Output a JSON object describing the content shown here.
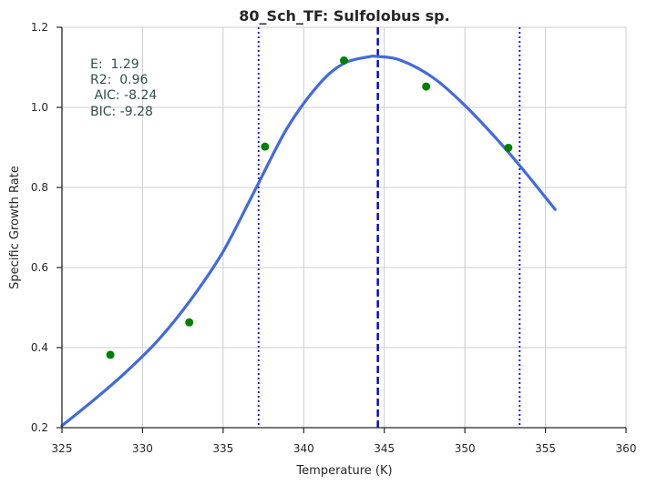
{
  "chart_data": {
    "type": "scatter",
    "title": "80_Sch_TF: Sulfolobus sp.",
    "xlabel": "Temperature (K)",
    "ylabel": "Specific Growth Rate",
    "xlim": [
      325,
      360
    ],
    "ylim": [
      0.2,
      1.2
    ],
    "xticks": [
      325,
      330,
      335,
      340,
      345,
      350,
      355,
      360
    ],
    "yticks": [
      0.2,
      0.4,
      0.6,
      0.8,
      1.0,
      1.2
    ],
    "xtick_labels": [
      "325",
      "330",
      "335",
      "340",
      "345",
      "350",
      "355",
      "360"
    ],
    "ytick_labels": [
      "0.2",
      "0.4",
      "0.6",
      "0.8",
      "1.0",
      "1.2"
    ],
    "grid": true,
    "points": {
      "color": "#008000",
      "x": [
        328.0,
        332.9,
        337.6,
        342.5,
        347.6,
        352.7
      ],
      "y": [
        0.382,
        0.463,
        0.902,
        1.117,
        1.052,
        0.899
      ]
    },
    "fit_curve": {
      "color": "#4169e1",
      "x": [
        325.0,
        327.0,
        329.0,
        331.0,
        333.0,
        335.0,
        337.0,
        339.0,
        341.0,
        342.5,
        344.0,
        344.6,
        346.0,
        348.0,
        350.0,
        352.0,
        353.5,
        355.6
      ],
      "y": [
        0.205,
        0.27,
        0.34,
        0.42,
        0.52,
        0.64,
        0.795,
        0.95,
        1.06,
        1.11,
        1.126,
        1.127,
        1.118,
        1.075,
        1.005,
        0.92,
        0.85,
        0.745
      ]
    },
    "vertical_lines": [
      {
        "x": 344.6,
        "style": "dashed",
        "color": "#0000cd"
      },
      {
        "x": 337.2,
        "style": "dotted",
        "color": "#0000ff"
      },
      {
        "x": 353.4,
        "style": "dotted",
        "color": "#0000ff"
      }
    ],
    "annotations": [
      "E:  1.29",
      "R2:  0.96",
      " AIC: -8.24",
      "BIC: -9.28"
    ]
  }
}
